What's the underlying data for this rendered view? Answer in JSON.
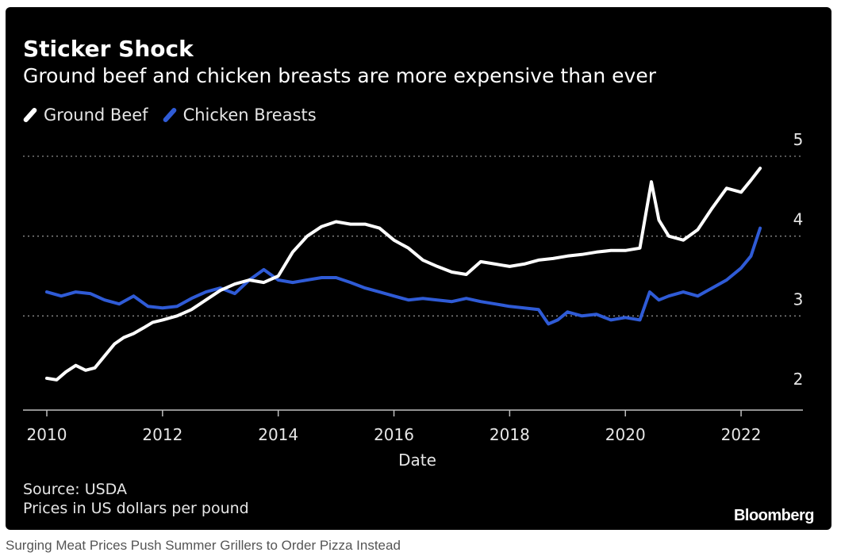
{
  "header": {
    "title": "Sticker Shock",
    "subtitle": "Ground beef and chicken breasts are more expensive than ever"
  },
  "footer": {
    "source": "Source: USDA",
    "units": "Prices in US dollars per pound",
    "brand": "Bloomberg"
  },
  "caption": "Surging Meat Prices Push Summer Grillers to Order Pizza Instead",
  "colors": {
    "background": "#000000",
    "beef": "#ffffff",
    "chicken": "#2f5bd6",
    "gridline": "#8a8a8a"
  },
  "chart_data": {
    "type": "line",
    "title": "Sticker Shock",
    "subtitle": "Ground beef and chicken breasts are more expensive than ever",
    "xlabel": "Date",
    "ylabel": "",
    "xlim": [
      2010,
      2023
    ],
    "ylim": [
      2,
      5
    ],
    "x_ticks": [
      "2010",
      "2012",
      "2014",
      "2016",
      "2018",
      "2020",
      "2022"
    ],
    "y_ticks": [
      "2",
      "3",
      "4",
      "5"
    ],
    "grid": "horizontal dotted",
    "legend": "top-left",
    "y_axis_side": "right",
    "series": [
      {
        "name": "Ground Beef",
        "color": "#ffffff",
        "x": [
          2010.0,
          2010.17,
          2010.33,
          2010.5,
          2010.67,
          2010.83,
          2011.0,
          2011.17,
          2011.33,
          2011.5,
          2011.67,
          2011.83,
          2012.0,
          2012.25,
          2012.5,
          2012.75,
          2013.0,
          2013.25,
          2013.5,
          2013.75,
          2014.0,
          2014.25,
          2014.5,
          2014.75,
          2015.0,
          2015.25,
          2015.5,
          2015.75,
          2016.0,
          2016.25,
          2016.5,
          2016.75,
          2017.0,
          2017.25,
          2017.5,
          2017.75,
          2018.0,
          2018.25,
          2018.5,
          2018.75,
          2019.0,
          2019.25,
          2019.5,
          2019.75,
          2020.0,
          2020.25,
          2020.45,
          2020.58,
          2020.75,
          2021.0,
          2021.25,
          2021.5,
          2021.75,
          2022.0,
          2022.17,
          2022.33
        ],
        "values": [
          2.22,
          2.2,
          2.3,
          2.38,
          2.32,
          2.35,
          2.5,
          2.65,
          2.73,
          2.78,
          2.85,
          2.92,
          2.95,
          3.0,
          3.08,
          3.2,
          3.32,
          3.4,
          3.45,
          3.42,
          3.5,
          3.8,
          4.0,
          4.12,
          4.18,
          4.15,
          4.15,
          4.1,
          3.95,
          3.85,
          3.7,
          3.62,
          3.55,
          3.52,
          3.68,
          3.65,
          3.62,
          3.65,
          3.7,
          3.72,
          3.75,
          3.77,
          3.8,
          3.82,
          3.82,
          3.85,
          4.68,
          4.2,
          4.0,
          3.95,
          4.08,
          4.35,
          4.6,
          4.55,
          4.7,
          4.85
        ]
      },
      {
        "name": "Chicken Breasts",
        "color": "#2f5bd6",
        "x": [
          2010.0,
          2010.25,
          2010.5,
          2010.75,
          2011.0,
          2011.25,
          2011.5,
          2011.75,
          2012.0,
          2012.25,
          2012.5,
          2012.75,
          2013.0,
          2013.25,
          2013.5,
          2013.75,
          2014.0,
          2014.25,
          2014.5,
          2014.75,
          2015.0,
          2015.25,
          2015.5,
          2015.75,
          2016.0,
          2016.25,
          2016.5,
          2016.75,
          2017.0,
          2017.25,
          2017.5,
          2017.75,
          2018.0,
          2018.25,
          2018.5,
          2018.67,
          2018.83,
          2019.0,
          2019.25,
          2019.5,
          2019.75,
          2020.0,
          2020.25,
          2020.42,
          2020.58,
          2020.75,
          2021.0,
          2021.25,
          2021.5,
          2021.75,
          2022.0,
          2022.17,
          2022.33
        ],
        "values": [
          3.3,
          3.25,
          3.3,
          3.28,
          3.2,
          3.15,
          3.25,
          3.12,
          3.1,
          3.12,
          3.22,
          3.3,
          3.35,
          3.28,
          3.45,
          3.58,
          3.45,
          3.42,
          3.45,
          3.48,
          3.48,
          3.42,
          3.35,
          3.3,
          3.25,
          3.2,
          3.22,
          3.2,
          3.18,
          3.22,
          3.18,
          3.15,
          3.12,
          3.1,
          3.08,
          2.9,
          2.95,
          3.05,
          3.0,
          3.02,
          2.95,
          2.98,
          2.95,
          3.3,
          3.2,
          3.25,
          3.3,
          3.25,
          3.35,
          3.45,
          3.6,
          3.75,
          4.1
        ]
      }
    ]
  }
}
